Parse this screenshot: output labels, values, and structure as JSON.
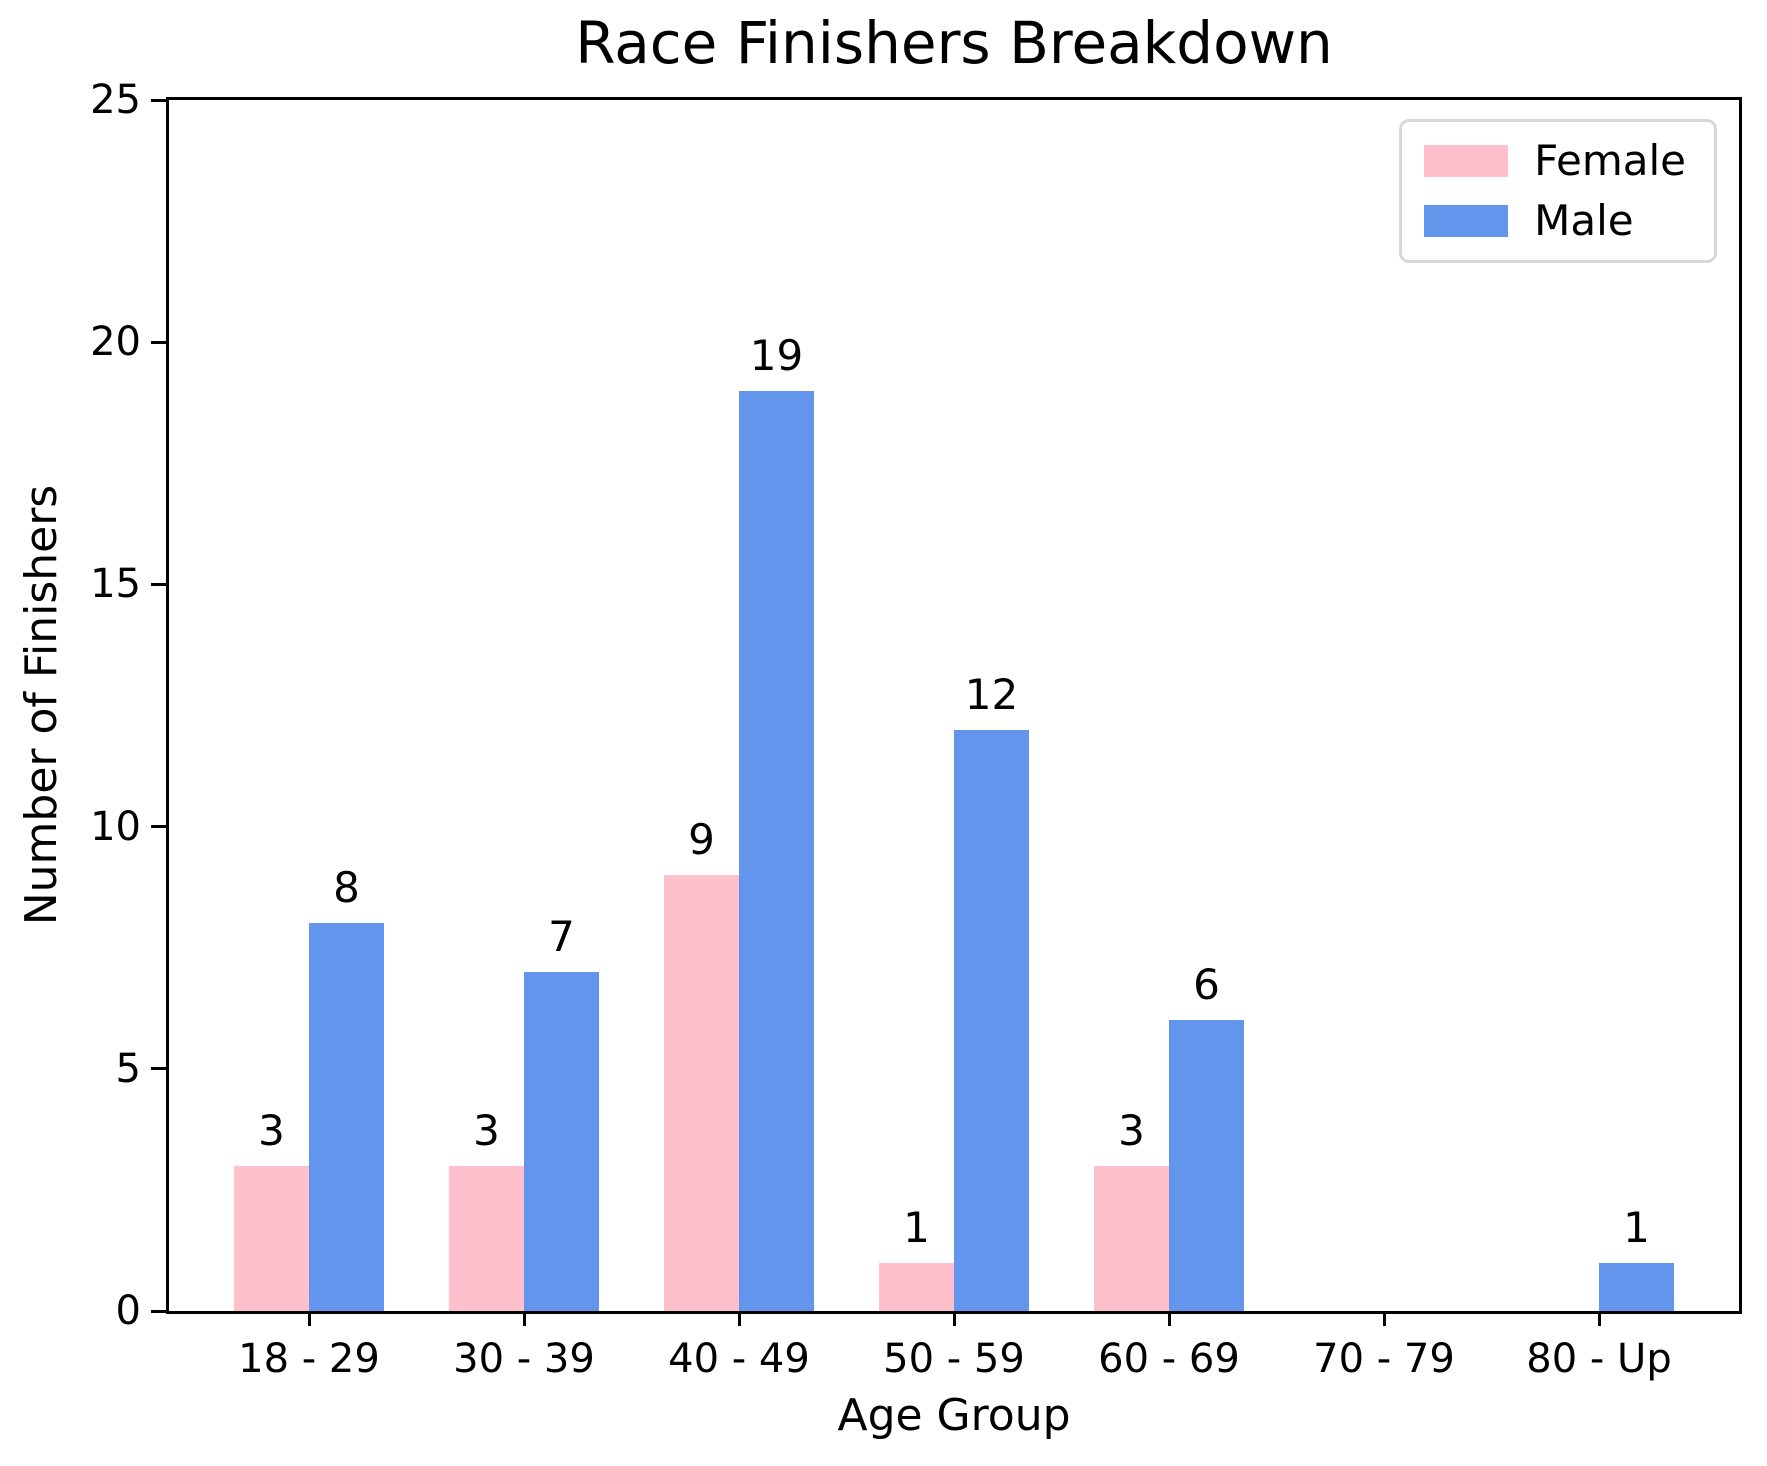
{
  "chart_data": {
    "type": "bar",
    "title": "Race Finishers Breakdown",
    "xlabel": "Age Group",
    "ylabel": "Number of Finishers",
    "categories": [
      "18 - 29",
      "30 - 39",
      "40 - 49",
      "50 - 59",
      "60 - 69",
      "70 - 79",
      "80 - Up"
    ],
    "series": [
      {
        "name": "Female",
        "color": "#FFC0CB",
        "values": [
          3,
          3,
          9,
          1,
          3,
          0,
          0
        ]
      },
      {
        "name": "Male",
        "color": "#6495ED",
        "values": [
          8,
          7,
          19,
          12,
          6,
          0,
          1
        ]
      }
    ],
    "ylim": [
      0,
      25
    ],
    "yticks": [
      0,
      5,
      10,
      15,
      20,
      25
    ],
    "bar_value_labels_shown": true,
    "legend_position": "upper right",
    "grid": false,
    "background_color": "#FFFFFF",
    "axis_color": "#000000"
  }
}
